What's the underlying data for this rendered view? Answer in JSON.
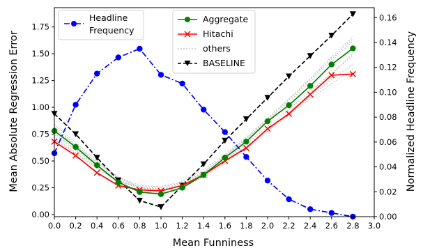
{
  "chart_data": {
    "type": "line",
    "xlabel": "Mean Funniness",
    "ylabel": "Mean Absolute Regression Error",
    "y2label": "Normalized Headline Frequency",
    "xlim": [
      0,
      3.0
    ],
    "ylim": [
      -0.02,
      1.93
    ],
    "y2lim": [
      0,
      0.168
    ],
    "x_ticks": [
      "0.0",
      "0.2",
      "0.4",
      "0.6",
      "0.8",
      "1.0",
      "1.2",
      "1.4",
      "1.6",
      "1.8",
      "2.0",
      "2.2",
      "2.4",
      "2.6",
      "2.8",
      "3.0"
    ],
    "y_ticks": [
      "0.00",
      "0.25",
      "0.50",
      "0.75",
      "1.00",
      "1.25",
      "1.50",
      "1.75"
    ],
    "y2_ticks": [
      "0.00",
      "0.02",
      "0.04",
      "0.06",
      "0.08",
      "0.10",
      "0.12",
      "0.14",
      "0.16"
    ],
    "grid": false,
    "x": [
      0.0,
      0.2,
      0.4,
      0.6,
      0.8,
      1.0,
      1.2,
      1.4,
      1.6,
      1.8,
      2.0,
      2.2,
      2.4,
      2.6,
      2.8
    ],
    "series": [
      {
        "name": "Aggregate",
        "axis": "left",
        "color": "#008000",
        "marker": "circle",
        "style": "solid",
        "values": [
          0.78,
          0.63,
          0.46,
          0.3,
          0.21,
          0.19,
          0.25,
          0.37,
          0.53,
          0.68,
          0.87,
          1.02,
          1.2,
          1.4,
          1.55
        ]
      },
      {
        "name": "Hitachi",
        "axis": "left",
        "color": "#ff0000",
        "marker": "x",
        "style": "solid",
        "values": [
          0.68,
          0.55,
          0.39,
          0.27,
          0.23,
          0.22,
          0.27,
          0.37,
          0.5,
          0.62,
          0.8,
          0.94,
          1.12,
          1.3,
          1.31
        ]
      },
      {
        "name": "BASELINE",
        "axis": "left",
        "color": "#000000",
        "marker": "triangle-down",
        "style": "dashed",
        "values": [
          0.94,
          0.75,
          0.53,
          0.32,
          0.13,
          0.07,
          0.27,
          0.47,
          0.69,
          0.89,
          1.09,
          1.29,
          1.48,
          1.67,
          1.87
        ]
      },
      {
        "name": "Headline Frequency",
        "axis": "right",
        "color": "#0000ff",
        "marker": "circle",
        "style": "dashdot",
        "values": [
          0.051,
          0.09,
          0.115,
          0.128,
          0.135,
          0.114,
          0.107,
          0.086,
          0.068,
          0.048,
          0.029,
          0.014,
          0.006,
          0.003,
          0.0
        ]
      },
      {
        "name": "others",
        "axis": "left",
        "color": "#c8c8c8",
        "marker": "none",
        "style": "dotted",
        "values_list": [
          [
            0.82,
            0.65,
            0.49,
            0.34,
            0.26,
            0.25,
            0.3,
            0.4,
            0.54,
            0.7,
            0.88,
            1.05,
            1.24,
            1.43,
            1.62
          ],
          [
            0.74,
            0.6,
            0.45,
            0.32,
            0.24,
            0.23,
            0.28,
            0.38,
            0.52,
            0.66,
            0.82,
            0.98,
            1.15,
            1.32,
            1.48
          ],
          [
            0.7,
            0.57,
            0.43,
            0.31,
            0.25,
            0.24,
            0.29,
            0.39,
            0.51,
            0.64,
            0.79,
            0.94,
            1.1,
            1.26,
            1.4
          ],
          [
            0.8,
            0.64,
            0.48,
            0.35,
            0.27,
            0.26,
            0.31,
            0.42,
            0.56,
            0.72,
            0.9,
            1.08,
            1.27,
            1.47,
            1.66
          ],
          [
            0.76,
            0.61,
            0.46,
            0.33,
            0.25,
            0.23,
            0.27,
            0.36,
            0.49,
            0.63,
            0.78,
            0.93,
            1.08,
            1.22,
            1.36
          ],
          [
            0.72,
            0.58,
            0.44,
            0.31,
            0.22,
            0.2,
            0.25,
            0.35,
            0.48,
            0.62,
            0.78,
            0.95,
            1.13,
            1.31,
            1.5
          ],
          [
            0.84,
            0.67,
            0.5,
            0.35,
            0.25,
            0.22,
            0.27,
            0.39,
            0.55,
            0.71,
            0.89,
            1.07,
            1.26,
            1.45,
            1.64
          ]
        ]
      }
    ],
    "legend_left": {
      "placement": "top-left",
      "label_lines": [
        "Headline",
        "Frequency"
      ]
    },
    "legend_right": {
      "placement": "top-center",
      "labels": [
        "Aggregate",
        "Hitachi",
        "others",
        "BASELINE"
      ]
    }
  }
}
